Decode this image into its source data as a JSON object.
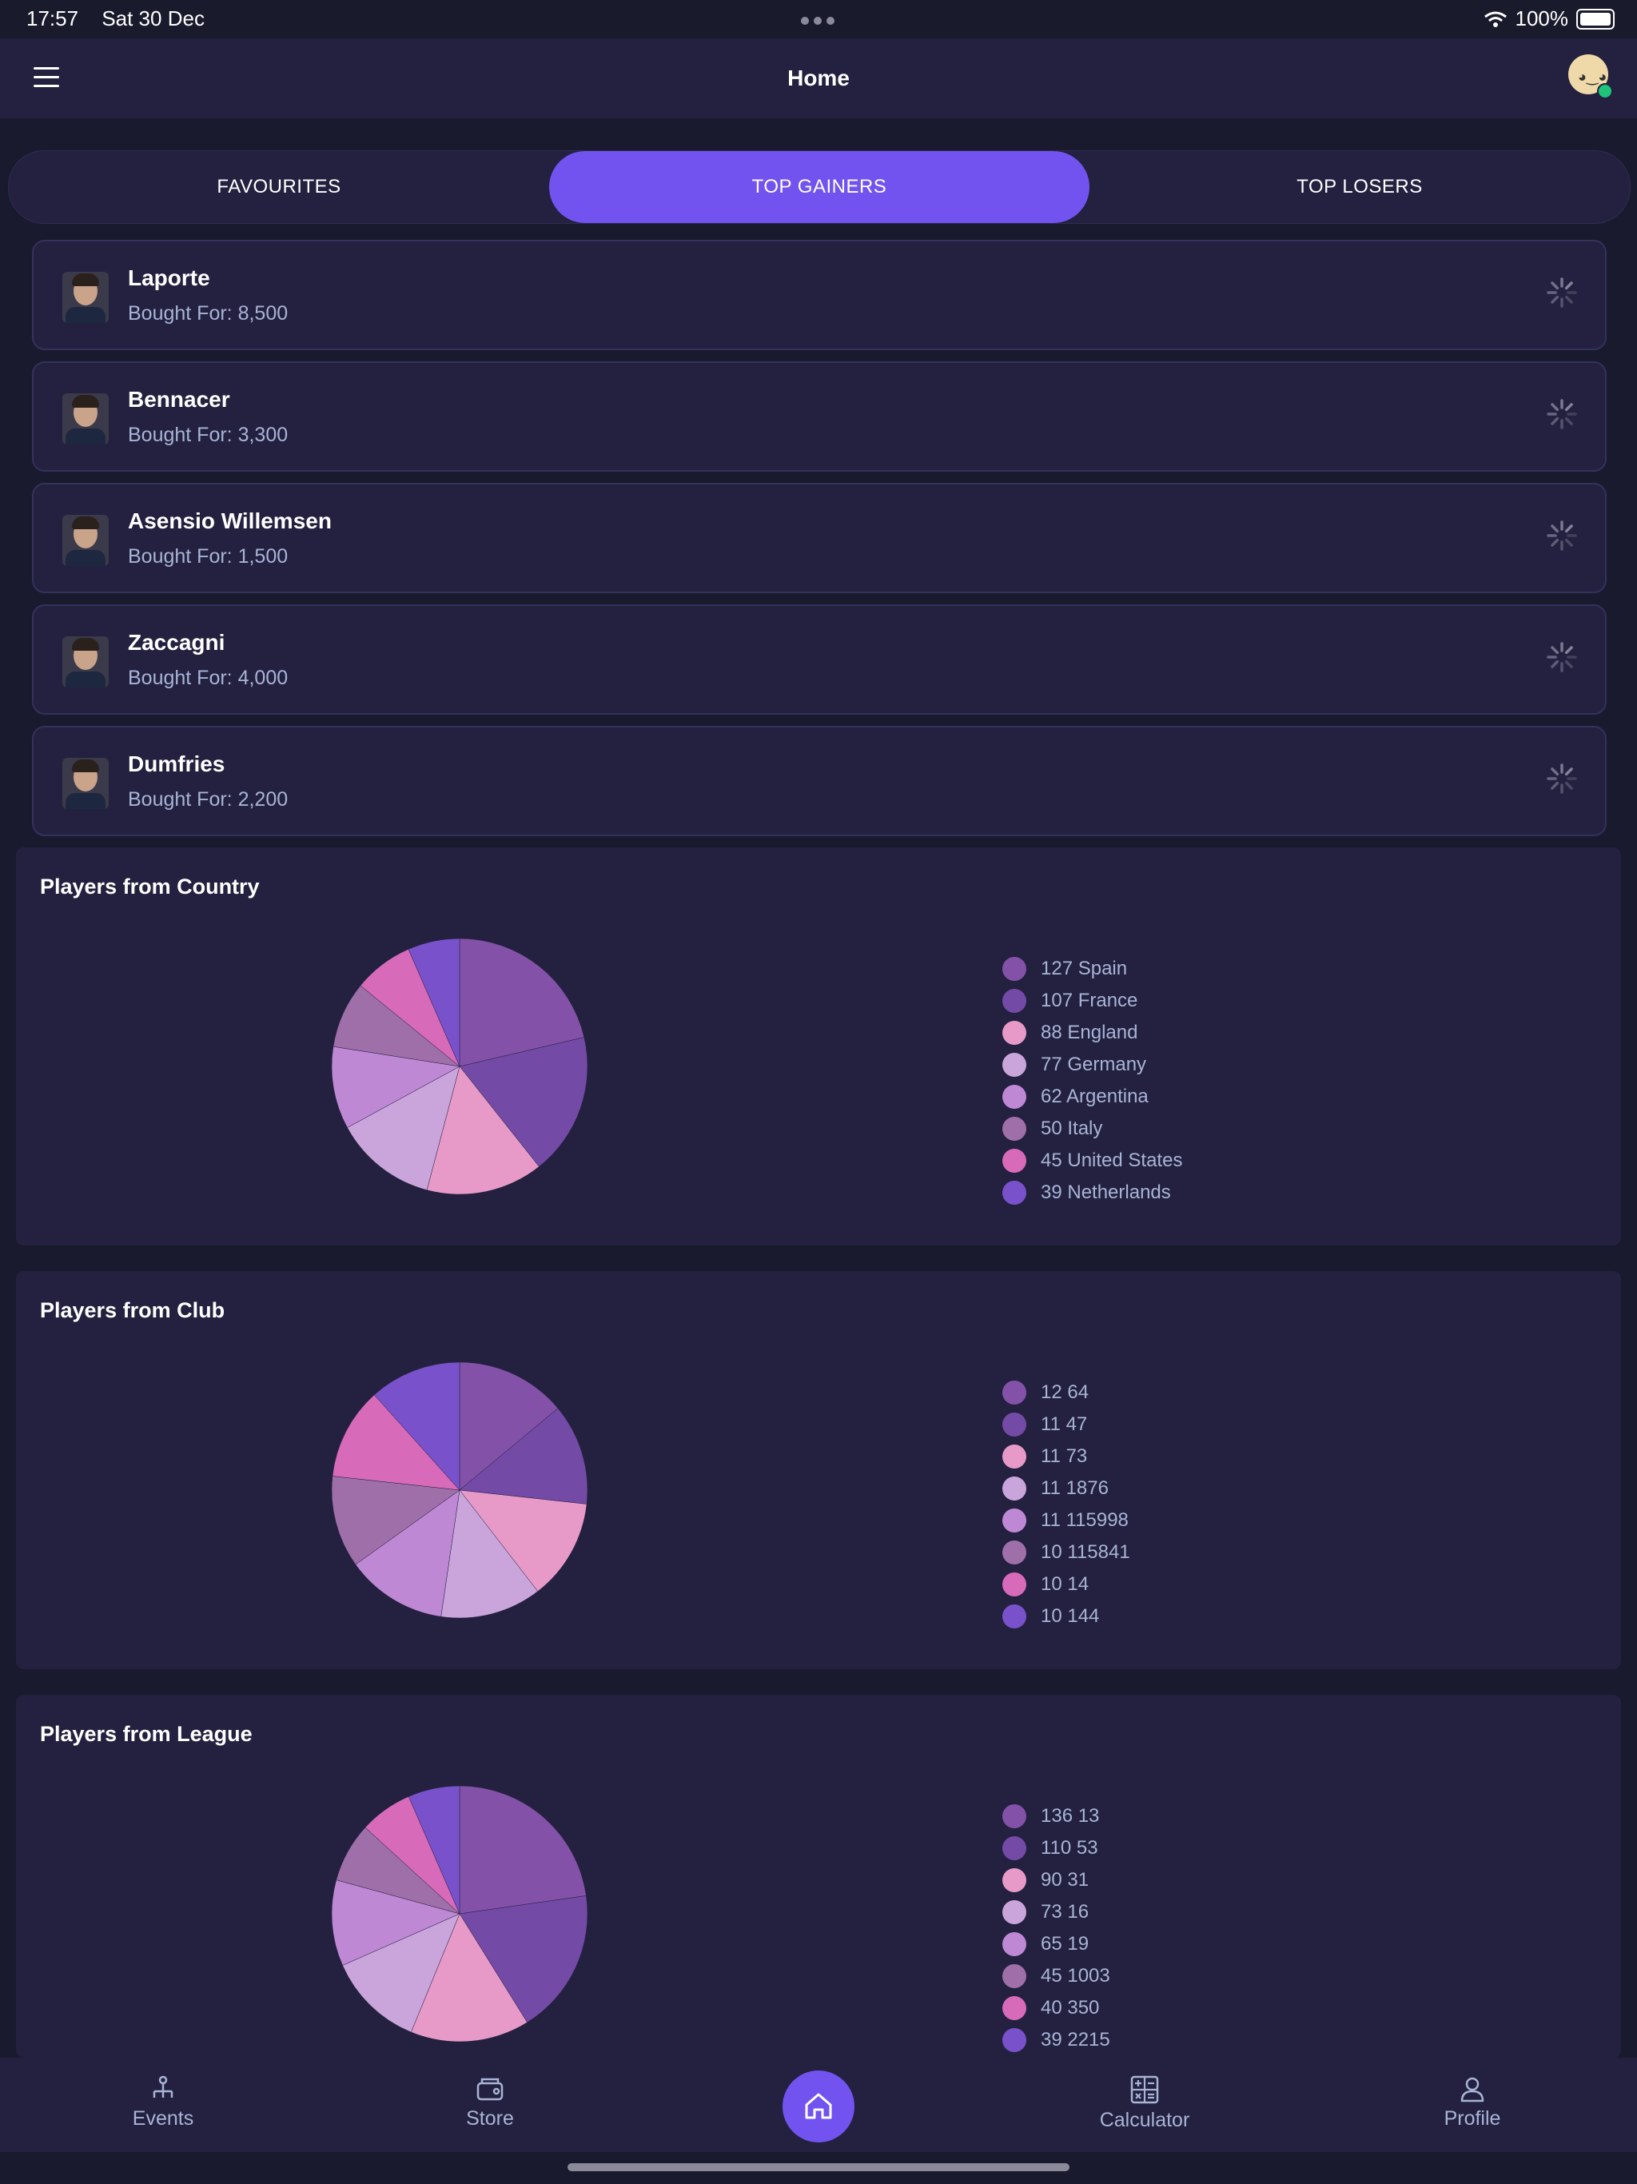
{
  "status": {
    "time": "17:57",
    "date": "Sat 30 Dec",
    "battery": "100%"
  },
  "nav": {
    "title": "Home"
  },
  "tabs": [
    {
      "label": "FAVOURITES",
      "active": false
    },
    {
      "label": "TOP GAINERS",
      "active": true
    },
    {
      "label": "TOP LOSERS",
      "active": false
    }
  ],
  "players": [
    {
      "name": "Laporte",
      "bought": "Bought For: 8,500"
    },
    {
      "name": "Bennacer",
      "bought": "Bought For: 3,300"
    },
    {
      "name": "Asensio Willemsen",
      "bought": "Bought For: 1,500"
    },
    {
      "name": "Zaccagni",
      "bought": "Bought For: 4,000"
    },
    {
      "name": "Dumfries",
      "bought": "Bought For: 2,200"
    }
  ],
  "palette": [
    "#8352a8",
    "#734aa5",
    "#e79ac8",
    "#c9a5db",
    "#bf88d4",
    "#9e6fa8",
    "#d76ab9",
    "#7952cb"
  ],
  "chart_data": [
    {
      "type": "pie",
      "title": "Players from Country",
      "labels": [
        "Spain",
        "France",
        "England",
        "Germany",
        "Argentina",
        "Italy",
        "United States",
        "Netherlands"
      ],
      "values": [
        127,
        107,
        88,
        77,
        62,
        50,
        45,
        39
      ],
      "legend": [
        "127 Spain",
        "107 France",
        "88 England",
        "77 Germany",
        "62 Argentina",
        "50 Italy",
        "45 United States",
        "39 Netherlands"
      ]
    },
    {
      "type": "pie",
      "title": "Players from Club",
      "labels": [
        "64",
        "47",
        "73",
        "1876",
        "115998",
        "115841",
        "14",
        "144"
      ],
      "values": [
        12,
        11,
        11,
        11,
        11,
        10,
        10,
        10
      ],
      "legend": [
        "12 64",
        "11 47",
        "11 73",
        "11 1876",
        "11 115998",
        "10 115841",
        "10 14",
        "10 144"
      ]
    },
    {
      "type": "pie",
      "title": "Players from League",
      "labels": [
        "13",
        "53",
        "31",
        "16",
        "19",
        "1003",
        "350",
        "2215"
      ],
      "values": [
        136,
        110,
        90,
        73,
        65,
        45,
        40,
        39
      ],
      "legend": [
        "136 13",
        "110 53",
        "90 31",
        "73 16",
        "65 19",
        "45 1003",
        "40 350",
        "39 2215"
      ]
    }
  ],
  "tabbar": {
    "events": "Events",
    "store": "Store",
    "calculator": "Calculator",
    "profile": "Profile"
  }
}
